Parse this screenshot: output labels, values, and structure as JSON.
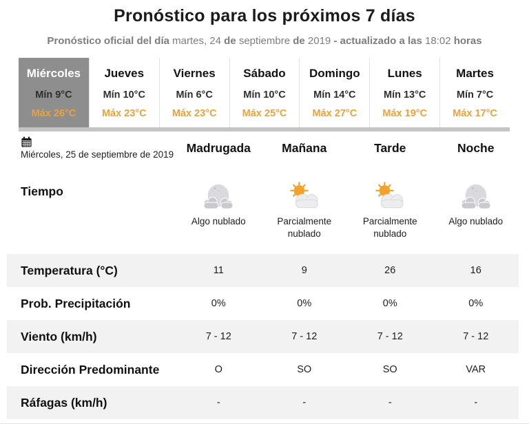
{
  "page": {
    "title": "Pronóstico para los próximos 7 días",
    "subtitle_segments": [
      {
        "text": "Pronóstico oficial del día ",
        "bold": true
      },
      {
        "text": "martes, 24 ",
        "bold": false
      },
      {
        "text": "de ",
        "bold": true
      },
      {
        "text": "septiembre ",
        "bold": false
      },
      {
        "text": "de ",
        "bold": true
      },
      {
        "text": "2019 ",
        "bold": false
      },
      {
        "text": "- actualizado a las ",
        "bold": true
      },
      {
        "text": "18:02 ",
        "bold": false
      },
      {
        "text": "horas",
        "bold": true
      }
    ]
  },
  "colors": {
    "max_temp_accent": "#e8a33d",
    "selected_day_bg": "#8e8e8e",
    "shaded_row_bg": "#f2f2f2",
    "strip_bar": "#c4c4c4"
  },
  "day_cards": [
    {
      "day": "Miércoles",
      "min": "Mín 9°C",
      "max": "Máx 26°C",
      "selected": true
    },
    {
      "day": "Jueves",
      "min": "Mín 10°C",
      "max": "Máx 23°C",
      "selected": false
    },
    {
      "day": "Viernes",
      "min": "Mín 6°C",
      "max": "Máx 23°C",
      "selected": false
    },
    {
      "day": "Sábado",
      "min": "Mín 10°C",
      "max": "Máx 25°C",
      "selected": false
    },
    {
      "day": "Domingo",
      "min": "Mín 14°C",
      "max": "Máx 27°C",
      "selected": false
    },
    {
      "day": "Lunes",
      "min": "Mín 13°C",
      "max": "Máx 19°C",
      "selected": false
    },
    {
      "day": "Martes",
      "min": "Mín 7°C",
      "max": "Máx 17°C",
      "selected": false
    }
  ],
  "detail": {
    "date_label": "Miércoles, 25 de septiembre de 2019",
    "calendar_icon": "calendar-icon",
    "weather_row_label": "Tiempo",
    "periods": [
      {
        "label": "Madrugada",
        "icon": "night-cloudy",
        "condition": "Algo nublado"
      },
      {
        "label": "Mañana",
        "icon": "day-partly-cloudy",
        "condition": "Parcialmente nublado"
      },
      {
        "label": "Tarde",
        "icon": "day-partly-cloudy",
        "condition": "Parcialmente nublado"
      },
      {
        "label": "Noche",
        "icon": "night-cloudy",
        "condition": "Algo nublado"
      }
    ],
    "rows": [
      {
        "label": "Temperatura (°C)",
        "values": [
          "11",
          "9",
          "26",
          "16"
        ],
        "shaded": true
      },
      {
        "label": "Prob. Precipitación",
        "values": [
          "0%",
          "0%",
          "0%",
          "0%"
        ],
        "shaded": false
      },
      {
        "label": "Viento (km/h)",
        "values": [
          "7 - 12",
          "7 - 12",
          "7 - 12",
          "7 - 12"
        ],
        "shaded": true
      },
      {
        "label": "Dirección Predominante",
        "values": [
          "O",
          "SO",
          "SO",
          "VAR"
        ],
        "shaded": false
      },
      {
        "label": "Ráfagas (km/h)",
        "values": [
          "-",
          "-",
          "-",
          "-"
        ],
        "shaded": true
      }
    ]
  }
}
